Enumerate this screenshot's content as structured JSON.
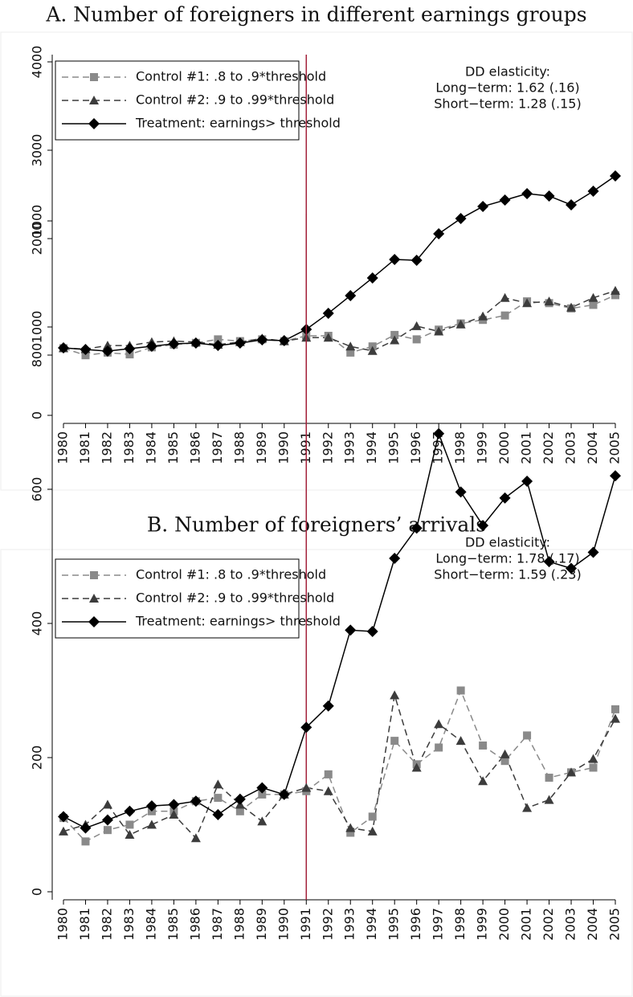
{
  "chart_data": [
    {
      "type": "line",
      "title": "A. Number of foreigners in different earnings groups",
      "x": [
        1980,
        1981,
        1982,
        1983,
        1984,
        1985,
        1986,
        1987,
        1988,
        1989,
        1990,
        1991,
        1992,
        1993,
        1994,
        1995,
        1996,
        1997,
        1998,
        1999,
        2000,
        2001,
        2002,
        2003,
        2004,
        2005
      ],
      "xticks": [
        1980,
        1981,
        1982,
        1983,
        1984,
        1985,
        1986,
        1987,
        1988,
        1989,
        1990,
        1991,
        1992,
        1993,
        1994,
        1995,
        1996,
        1997,
        1998,
        1999,
        2000,
        2001,
        2002,
        2003,
        2004,
        2005
      ],
      "ylim": [
        0,
        4000
      ],
      "yticks": [
        0,
        1000,
        2000,
        3000,
        4000
      ],
      "vline": 1991,
      "vline_color": "#a3203a",
      "legend": "upper left",
      "annotations": [
        "DD elasticity:",
        "Long−term: 1.62 (.16)",
        "Short−term: 1.28 (.15)"
      ],
      "series": [
        {
          "name": "Control #1: .8 to .9*threshold",
          "color": "#8a8a8a",
          "marker": "square",
          "dash": true,
          "values": [
            760,
            680,
            710,
            690,
            770,
            800,
            820,
            860,
            840,
            860,
            840,
            900,
            900,
            710,
            780,
            910,
            860,
            970,
            1040,
            1080,
            1130,
            1290,
            1270,
            1210,
            1250,
            1360
          ]
        },
        {
          "name": "Control #2: .9 to .99*threshold",
          "color": "#3c3c3c",
          "marker": "triangle",
          "dash": true,
          "values": [
            760,
            750,
            790,
            790,
            830,
            840,
            830,
            800,
            830,
            870,
            840,
            880,
            880,
            780,
            730,
            850,
            1010,
            950,
            1030,
            1120,
            1330,
            1270,
            1290,
            1220,
            1330,
            1410
          ]
        },
        {
          "name": "Treatment: earnings> threshold",
          "color": "#000000",
          "marker": "diamond",
          "dash": false,
          "values": [
            764,
            745,
            727,
            755,
            782,
            809,
            818,
            791,
            818,
            855,
            845,
            973,
            1155,
            1355,
            1555,
            1764,
            1755,
            2055,
            2227,
            2364,
            2436,
            2509,
            2482,
            2382,
            2536,
            2709
          ]
        }
      ]
    },
    {
      "type": "line",
      "title": "B. Number of foreigners’ arrivals",
      "x": [
        1980,
        1981,
        1982,
        1983,
        1984,
        1985,
        1986,
        1987,
        1988,
        1989,
        1990,
        1991,
        1992,
        1993,
        1994,
        1995,
        1996,
        1997,
        1998,
        1999,
        2000,
        2001,
        2002,
        2003,
        2004,
        2005
      ],
      "xticks": [
        1980,
        1981,
        1982,
        1983,
        1984,
        1985,
        1986,
        1987,
        1988,
        1989,
        1990,
        1991,
        1992,
        1993,
        1994,
        1995,
        1996,
        1997,
        1998,
        1999,
        2000,
        2001,
        2002,
        2003,
        2004,
        2005
      ],
      "ylim": [
        0,
        1000
      ],
      "yticks": [
        0,
        200,
        400,
        600,
        800,
        1000
      ],
      "vline": 1991,
      "vline_color": "#a3203a",
      "legend": "upper left",
      "annotations": [
        "DD elasticity:",
        "Long−term: 1.78 (.17)",
        "Short−term: 1.59 (.23)"
      ],
      "series": [
        {
          "name": "Control #1: .8 to .9*threshold",
          "color": "#8a8a8a",
          "marker": "square",
          "dash": true,
          "values": [
            110,
            75,
            92,
            100,
            120,
            120,
            135,
            140,
            120,
            145,
            145,
            150,
            175,
            88,
            112,
            225,
            190,
            215,
            300,
            218,
            195,
            233,
            170,
            178,
            185,
            272
          ]
        },
        {
          "name": "Control #2: .9 to .99*threshold",
          "color": "#3c3c3c",
          "marker": "triangle",
          "dash": true,
          "values": [
            90,
            100,
            130,
            85,
            100,
            115,
            80,
            160,
            130,
            105,
            145,
            155,
            150,
            95,
            90,
            293,
            185,
            250,
            225,
            165,
            205,
            125,
            137,
            178,
            198,
            258
          ]
        },
        {
          "name": "Treatment: earnings> threshold",
          "color": "#000000",
          "marker": "diamond",
          "dash": false,
          "values": [
            112,
            95,
            107,
            120,
            128,
            130,
            135,
            115,
            138,
            155,
            145,
            245,
            277,
            390,
            388,
            497,
            542,
            683,
            596,
            546,
            587,
            612,
            492,
            482,
            506,
            620
          ]
        }
      ]
    }
  ]
}
